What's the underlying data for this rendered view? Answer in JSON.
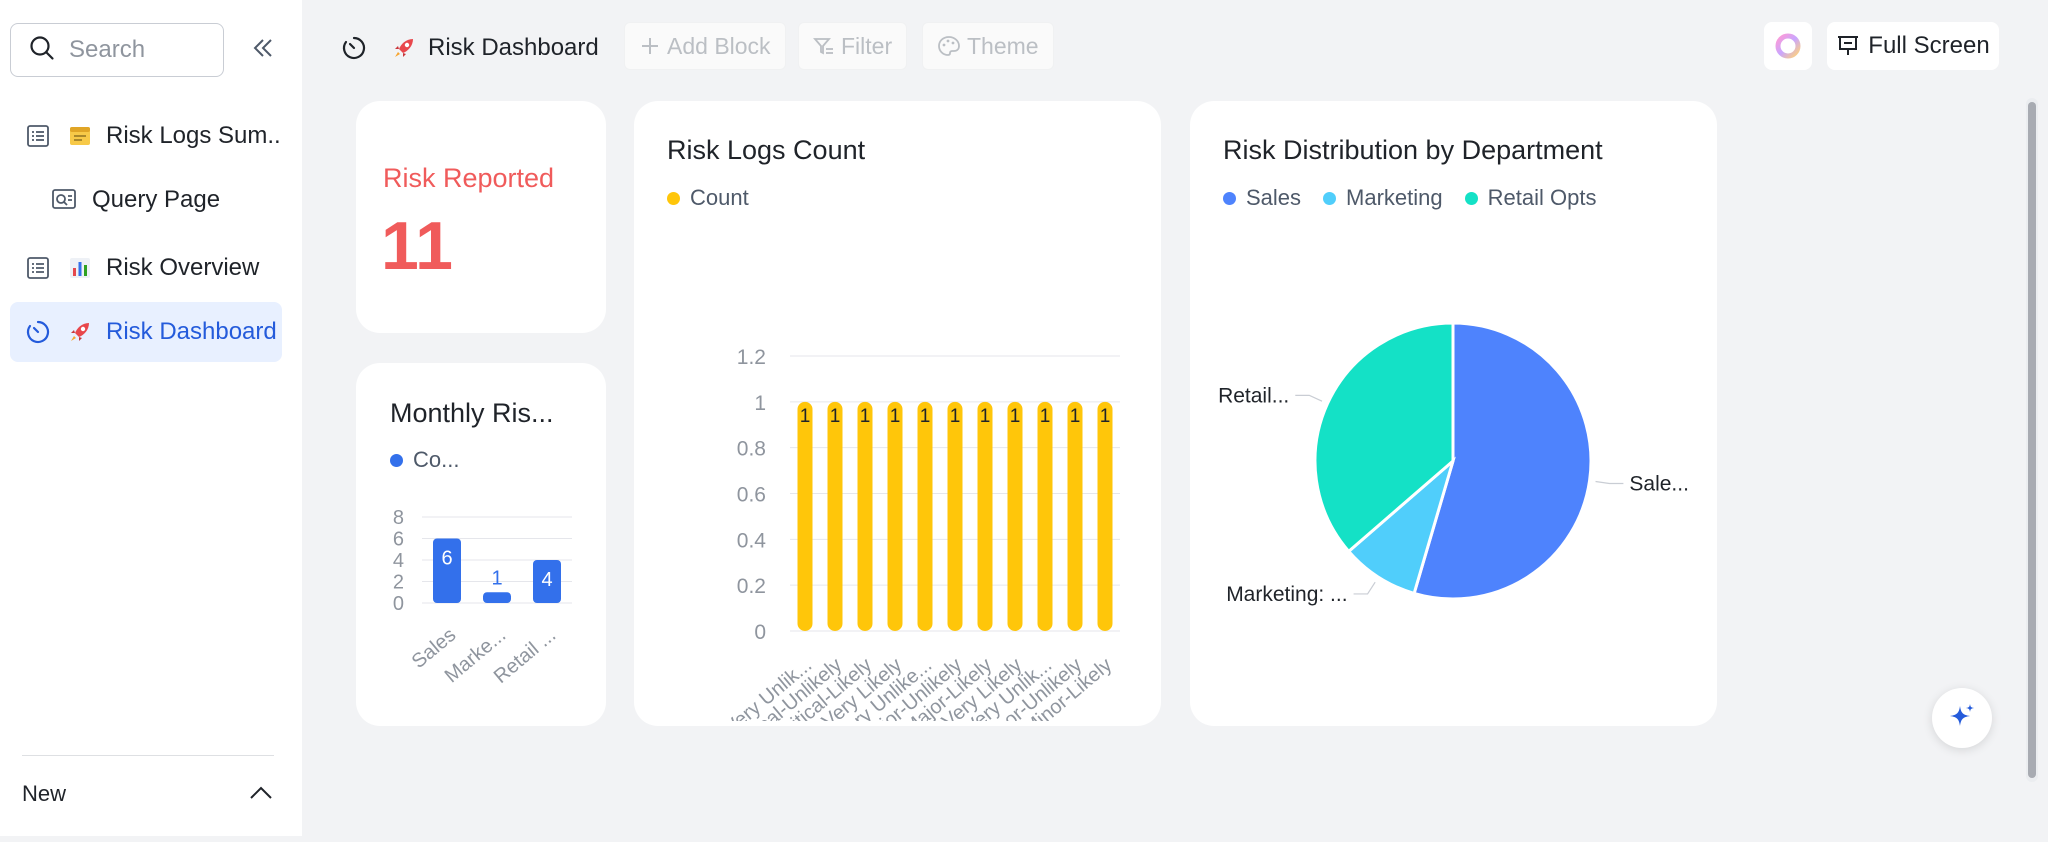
{
  "sidebar": {
    "search_placeholder": "Search",
    "items": [
      {
        "label": "Risk Logs Sum...",
        "emoji": "🗒️"
      },
      {
        "label": "Query Page"
      },
      {
        "label": "Risk Overview",
        "emoji": "📊"
      },
      {
        "label": "Risk Dashboard",
        "emoji": "🚀"
      }
    ],
    "new_label": "New"
  },
  "header": {
    "title": "Risk Dashboard",
    "title_emoji": "🚀",
    "add_block": "Add Block",
    "filter": "Filter",
    "theme": "Theme",
    "full_screen": "Full Screen"
  },
  "kpi": {
    "label": "Risk Reported",
    "value": "11",
    "color": "#f05b5b"
  },
  "colors": {
    "accent": "#245bdb",
    "bar_blue": "#3370eb",
    "bar_yellow": "#ffc60a",
    "pie_sales": "#4e83fd",
    "pie_marketing": "#50cefb",
    "pie_retail": "#14e1c6"
  },
  "chart_data": [
    {
      "type": "bar",
      "title": "Monthly Ris...",
      "legend": [
        "Co..."
      ],
      "categories": [
        "Sales",
        "Marke...",
        "Retail ..."
      ],
      "values": [
        6,
        1,
        4
      ],
      "yticks": [
        "0",
        "2",
        "4",
        "6",
        "8"
      ],
      "ylim": [
        0,
        8
      ]
    },
    {
      "type": "bar",
      "title": "Risk Logs Count",
      "legend": [
        "Count"
      ],
      "categories": [
        "Critical-Very Unlik...",
        "Critical-Unlikely",
        "Critical-Likely",
        "Critical-Very Likely",
        "Major-Very Unlike...",
        "Major-Unlikely",
        "Major-Likely",
        "Major-Very Likely",
        "Minor-Very Unlik...",
        "Minor-Unlikely",
        "Minor-Likely"
      ],
      "values": [
        1,
        1,
        1,
        1,
        1,
        1,
        1,
        1,
        1,
        1,
        1
      ],
      "yticks": [
        "0",
        "0.2",
        "0.4",
        "0.6",
        "0.8",
        "1",
        "1.2"
      ],
      "ylim": [
        0,
        1.2
      ]
    },
    {
      "type": "pie",
      "title": "Risk Distribution by Department",
      "legend": [
        "Sales",
        "Marketing",
        "Retail Opts"
      ],
      "values": [
        6,
        1,
        4
      ],
      "slice_labels": [
        "Sale...",
        "Marketing: ...",
        "Retail..."
      ]
    }
  ]
}
